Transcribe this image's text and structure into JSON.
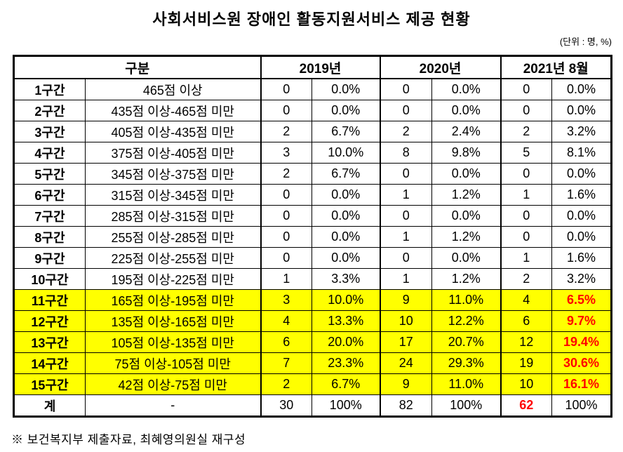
{
  "title": "사회서비스원 장애인 활동지원서비스 제공 현황",
  "unit_label": "(단위 : 명, %)",
  "footnote": "※ 보건복지부 제출자료, 최혜영의원실 재구성",
  "colors": {
    "highlight": "#ffff00",
    "alert_text": "#ff0000",
    "border": "#000000",
    "background": "#ffffff"
  },
  "table": {
    "headers": {
      "category": "구분",
      "years": [
        "2019년",
        "2020년",
        "2021년 8월"
      ]
    },
    "rows": [
      {
        "label": "1구간",
        "range": "465점 이상",
        "values": [
          "0",
          "0.0%",
          "0",
          "0.0%",
          "0",
          "0.0%"
        ],
        "highlight": false,
        "red_values": []
      },
      {
        "label": "2구간",
        "range": "435점 이상-465점 미만",
        "values": [
          "0",
          "0.0%",
          "0",
          "0.0%",
          "0",
          "0.0%"
        ],
        "highlight": false,
        "red_values": []
      },
      {
        "label": "3구간",
        "range": "405점 이상-435점 미만",
        "values": [
          "2",
          "6.7%",
          "2",
          "2.4%",
          "2",
          "3.2%"
        ],
        "highlight": false,
        "red_values": []
      },
      {
        "label": "4구간",
        "range": "375점 이상-405점 미만",
        "values": [
          "3",
          "10.0%",
          "8",
          "9.8%",
          "5",
          "8.1%"
        ],
        "highlight": false,
        "red_values": []
      },
      {
        "label": "5구간",
        "range": "345점 이상-375점 미만",
        "values": [
          "2",
          "6.7%",
          "0",
          "0.0%",
          "0",
          "0.0%"
        ],
        "highlight": false,
        "red_values": []
      },
      {
        "label": "6구간",
        "range": "315점 이상-345점 미만",
        "values": [
          "0",
          "0.0%",
          "1",
          "1.2%",
          "1",
          "1.6%"
        ],
        "highlight": false,
        "red_values": []
      },
      {
        "label": "7구간",
        "range": "285점 이상-315점 미만",
        "values": [
          "0",
          "0.0%",
          "0",
          "0.0%",
          "0",
          "0.0%"
        ],
        "highlight": false,
        "red_values": []
      },
      {
        "label": "8구간",
        "range": "255점 이상-285점 미만",
        "values": [
          "0",
          "0.0%",
          "1",
          "1.2%",
          "0",
          "0.0%"
        ],
        "highlight": false,
        "red_values": []
      },
      {
        "label": "9구간",
        "range": "225점 이상-255점 미만",
        "values": [
          "0",
          "0.0%",
          "0",
          "0.0%",
          "1",
          "1.6%"
        ],
        "highlight": false,
        "red_values": []
      },
      {
        "label": "10구간",
        "range": "195점 이상-225점 미만",
        "values": [
          "1",
          "3.3%",
          "1",
          "1.2%",
          "2",
          "3.2%"
        ],
        "highlight": false,
        "red_values": []
      },
      {
        "label": "11구간",
        "range": "165점 이상-195점 미만",
        "values": [
          "3",
          "10.0%",
          "9",
          "11.0%",
          "4",
          "6.5%"
        ],
        "highlight": true,
        "red_values": [
          5
        ]
      },
      {
        "label": "12구간",
        "range": "135점 이상-165점 미만",
        "values": [
          "4",
          "13.3%",
          "10",
          "12.2%",
          "6",
          "9.7%"
        ],
        "highlight": true,
        "red_values": [
          5
        ]
      },
      {
        "label": "13구간",
        "range": "105점 이상-135점 미만",
        "values": [
          "6",
          "20.0%",
          "17",
          "20.7%",
          "12",
          "19.4%"
        ],
        "highlight": true,
        "red_values": [
          5
        ]
      },
      {
        "label": "14구간",
        "range": "75점 이상-105점 미만",
        "values": [
          "7",
          "23.3%",
          "24",
          "29.3%",
          "19",
          "30.6%"
        ],
        "highlight": true,
        "red_values": [
          5
        ]
      },
      {
        "label": "15구간",
        "range": "42점 이상-75점 미만",
        "values": [
          "2",
          "6.7%",
          "9",
          "11.0%",
          "10",
          "16.1%"
        ],
        "highlight": true,
        "red_values": [
          5
        ]
      },
      {
        "label": "계",
        "range": "-",
        "values": [
          "30",
          "100%",
          "82",
          "100%",
          "62",
          "100%"
        ],
        "highlight": false,
        "red_values": [
          4
        ],
        "is_total": true
      }
    ]
  }
}
